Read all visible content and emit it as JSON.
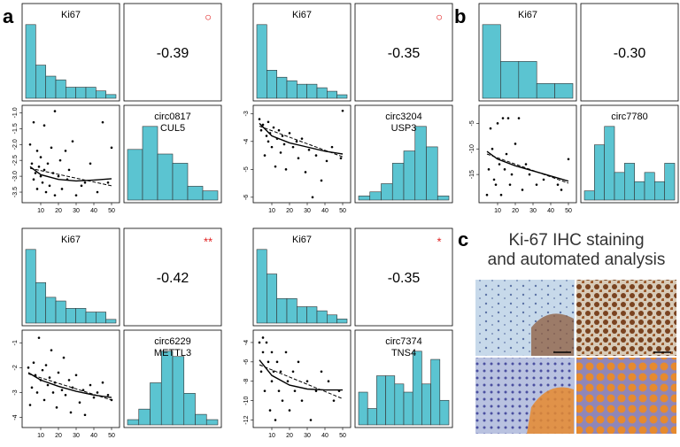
{
  "panel_labels": [
    "a",
    "b",
    "c"
  ],
  "c_title": [
    "Ki-67 IHC staining",
    "and automated analysis"
  ],
  "chart_data": [
    {
      "type": "pairs",
      "ki67_label": "Ki67",
      "ki67_hist": {
        "bins": [
          0,
          5,
          10,
          15,
          20,
          25,
          30,
          35,
          40,
          45
        ],
        "counts": [
          20,
          9,
          6,
          5,
          3,
          3,
          3,
          2,
          1
        ]
      },
      "r": -0.39,
      "marker": "○",
      "circ_label": [
        "circ0817",
        "CUL5"
      ],
      "circ_hist": {
        "bins": [
          -4.0,
          -3.5,
          -3.0,
          -2.5,
          -2.0,
          -1.5,
          -1.0
        ],
        "counts": [
          11,
          16,
          10,
          8,
          3,
          2
        ]
      },
      "scatter": {
        "xlim": [
          1,
          53
        ],
        "ylim": [
          -3.75,
          -0.85
        ],
        "xticks": [
          10,
          20,
          30,
          40,
          50
        ],
        "yticks": [
          {
            "value": -1,
            "label": "-1.0"
          },
          -1.5,
          {
            "value": -2,
            "label": "-2.0"
          },
          -2.5,
          {
            "value": -3,
            "label": "-3.0"
          },
          -3.5
        ],
        "x": [
          4,
          5,
          6,
          6,
          7,
          8,
          8,
          9,
          10,
          10,
          11,
          12,
          12,
          13,
          14,
          15,
          16,
          17,
          18,
          18,
          20,
          21,
          22,
          24,
          25,
          26,
          28,
          30,
          33,
          35,
          38,
          42,
          45,
          48,
          50
        ],
        "y": [
          -2.0,
          -2.6,
          -1.3,
          -3.1,
          -2.9,
          -2.2,
          -3.4,
          -2.7,
          -3.0,
          -2.4,
          -3.2,
          -2.8,
          -1.4,
          -3.5,
          -2.6,
          -3.3,
          -2.1,
          -2.9,
          -0.95,
          -3.6,
          -3.0,
          -2.5,
          -3.4,
          -2.2,
          -3.1,
          -2.8,
          -1.9,
          -3.6,
          -3.3,
          -3.2,
          -2.6,
          -3.5,
          -1.3,
          -3.2,
          -2.1
        ],
        "loess": {
          "x": [
            4,
            10,
            20,
            30,
            40,
            50
          ],
          "y": [
            -2.7,
            -2.95,
            -3.1,
            -3.15,
            -3.12,
            -3.08
          ]
        },
        "fit": {
          "x": [
            4,
            50
          ],
          "y": [
            -2.75,
            -3.3
          ]
        }
      }
    },
    {
      "type": "pairs",
      "ki67_label": "Ki67",
      "ki67_hist": {
        "bins": [
          0,
          5,
          10,
          15,
          20,
          25,
          30,
          35,
          40,
          45
        ],
        "counts": [
          21,
          8,
          6,
          5,
          4,
          4,
          3,
          2,
          1
        ]
      },
      "r": -0.35,
      "marker": "○",
      "circ_label": [
        "circ3204",
        "USP3"
      ],
      "circ_hist": {
        "bins": [
          -6.5,
          -6.0,
          -5.5,
          -5.0,
          -4.5,
          -4.0,
          -3.5,
          -3.0,
          -2.5
        ],
        "counts": [
          1,
          2,
          4,
          9,
          12,
          18,
          13,
          1
        ]
      },
      "scatter": {
        "xlim": [
          1,
          53
        ],
        "ylim": [
          -6.1,
          -2.8
        ],
        "xticks": [
          10,
          20,
          30,
          40,
          50
        ],
        "yticks": [
          -3,
          -4,
          -5,
          -6
        ],
        "x": [
          3,
          4,
          5,
          6,
          7,
          8,
          8,
          9,
          10,
          11,
          12,
          13,
          14,
          15,
          16,
          17,
          18,
          20,
          22,
          24,
          25,
          27,
          29,
          31,
          33,
          35,
          38,
          41,
          44,
          49,
          50
        ],
        "y": [
          -3.2,
          -3.6,
          -3.4,
          -4.5,
          -3.8,
          -3.3,
          -4.0,
          -3.7,
          -4.2,
          -3.5,
          -4.9,
          -3.9,
          -3.6,
          -4.4,
          -3.8,
          -4.1,
          -5.0,
          -3.7,
          -4.2,
          -4.0,
          -4.6,
          -3.9,
          -5.1,
          -4.3,
          -6.0,
          -4.5,
          -5.4,
          -4.7,
          -4.2,
          -4.6,
          -2.9
        ],
        "loess": {
          "x": [
            3,
            10,
            20,
            30,
            40,
            50
          ],
          "y": [
            -3.35,
            -3.8,
            -4.05,
            -4.2,
            -4.35,
            -4.45
          ]
        },
        "fit": {
          "x": [
            3,
            50
          ],
          "y": [
            -3.45,
            -4.55
          ]
        }
      }
    },
    {
      "type": "pairs",
      "ki67_label": "Ki67",
      "ki67_hist": {
        "bins": [
          0,
          10,
          20,
          30,
          40,
          50
        ],
        "counts": [
          10,
          5,
          5,
          2,
          2
        ]
      },
      "r": {
        "value": -0.3,
        "label": "-0.30"
      },
      "circ_label": [
        "circ7780"
      ],
      "circ_hist": {
        "bins": [
          -20,
          -18,
          -16,
          -14,
          -12,
          -10,
          -8,
          -6,
          -4,
          -2
        ],
        "counts": [
          1,
          6,
          8,
          3,
          4,
          2,
          3,
          2,
          4
        ]
      },
      "scatter": {
        "xlim": [
          1,
          53
        ],
        "ylim": [
          -20,
          -2
        ],
        "xticks": [
          10,
          20,
          30,
          40,
          50
        ],
        "yticks": [
          -5,
          -10,
          -15
        ],
        "x": [
          4,
          5,
          6,
          7,
          8,
          9,
          10,
          11,
          12,
          13,
          14,
          15,
          16,
          17,
          18,
          20,
          22,
          24,
          26,
          28,
          32,
          36,
          44,
          46,
          50
        ],
        "y": [
          -19,
          -14,
          -6,
          -10,
          -16,
          -17,
          -5,
          -13,
          -19,
          -4,
          -14,
          -11,
          -4,
          -17,
          -15,
          -9,
          -4,
          -18,
          -13,
          -15,
          -17,
          -16,
          -17,
          -18,
          -12
        ],
        "loess": {
          "x": [
            4,
            10,
            20,
            30,
            40,
            50
          ],
          "y": [
            -10.5,
            -12,
            -13.3,
            -14.3,
            -15.3,
            -16.3
          ]
        },
        "fit": {
          "x": [
            4,
            50
          ],
          "y": [
            -11,
            -16.7
          ]
        }
      }
    },
    {
      "type": "pairs",
      "ki67_label": "Ki67",
      "ki67_hist": {
        "bins": [
          0,
          5,
          10,
          15,
          20,
          25,
          30,
          35,
          40,
          45
        ],
        "counts": [
          20,
          11,
          7,
          6,
          4,
          4,
          3,
          3,
          1
        ]
      },
      "r": -0.42,
      "marker": "**",
      "circ_label": [
        "circ6229",
        "METTL3"
      ],
      "circ_hist": {
        "bins": [
          -4.5,
          -4.0,
          -3.5,
          -3.0,
          -2.5,
          -2.0,
          -1.5,
          -1.0,
          -0.5
        ],
        "counts": [
          1,
          3,
          8,
          14,
          13,
          6,
          2,
          1
        ]
      },
      "scatter": {
        "xlim": [
          1,
          53
        ],
        "ylim": [
          -4.3,
          -0.6
        ],
        "xticks": [
          10,
          20,
          30,
          40,
          50
        ],
        "yticks": [
          -1,
          -2,
          -3,
          -4
        ],
        "x": [
          3,
          4,
          5,
          6,
          7,
          8,
          9,
          10,
          11,
          12,
          13,
          14,
          15,
          16,
          17,
          18,
          19,
          20,
          22,
          23,
          24,
          26,
          27,
          28,
          30,
          32,
          34,
          35,
          38,
          40,
          42,
          45,
          48,
          50
        ],
        "y": [
          -2.0,
          -3.5,
          -2.8,
          -1.8,
          -2.3,
          -3.0,
          -0.8,
          -2.5,
          -2.1,
          -3.3,
          -1.9,
          -2.7,
          -2.4,
          -1.3,
          -3.0,
          -2.6,
          -3.6,
          -2.2,
          -2.9,
          -1.6,
          -3.1,
          -2.5,
          -3.8,
          -2.8,
          -2.3,
          -3.4,
          -2.9,
          -3.9,
          -2.7,
          -3.2,
          -3.0,
          -2.6,
          -3.1,
          -3.3
        ],
        "loess": {
          "x": [
            3,
            10,
            20,
            30,
            40,
            50
          ],
          "y": [
            -2.2,
            -2.5,
            -2.75,
            -2.95,
            -3.1,
            -3.2
          ]
        },
        "fit": {
          "x": [
            3,
            50
          ],
          "y": [
            -2.25,
            -3.3
          ]
        }
      }
    },
    {
      "type": "pairs",
      "ki67_label": "Ki67",
      "ki67_hist": {
        "bins": [
          0,
          5,
          10,
          15,
          20,
          25,
          30,
          35,
          40,
          45
        ],
        "counts": [
          18,
          12,
          6,
          6,
          4,
          4,
          3,
          2,
          1
        ]
      },
      "r": -0.35,
      "marker": "*",
      "circ_label": [
        "circ7374",
        "TNS4"
      ],
      "circ_hist": {
        "bins": [
          -13,
          -12,
          -11,
          -10,
          -9,
          -8,
          -7,
          -6,
          -5,
          -4,
          -3
        ],
        "counts": [
          4,
          2,
          6,
          6,
          5,
          4,
          9,
          5,
          8,
          3
        ]
      },
      "scatter": {
        "xlim": [
          1,
          53
        ],
        "ylim": [
          -12.5,
          -3
        ],
        "xticks": [
          10,
          20,
          30,
          40,
          50
        ],
        "yticks": [
          -4,
          -6,
          -8,
          -10,
          -12
        ],
        "x": [
          3,
          4,
          5,
          5,
          6,
          7,
          8,
          9,
          10,
          10,
          11,
          12,
          13,
          14,
          15,
          16,
          18,
          19,
          20,
          22,
          23,
          25,
          27,
          30,
          32,
          35,
          38,
          42,
          45,
          48
        ],
        "y": [
          -4,
          -7,
          -3.5,
          -5,
          -9,
          -4,
          -6,
          -11,
          -5,
          -8,
          -7,
          -12,
          -6,
          -9,
          -7,
          -10,
          -5,
          -8,
          -11,
          -7,
          -9,
          -6,
          -10,
          -8,
          -12,
          -9,
          -7,
          -8,
          -10,
          -9
        ],
        "loess": {
          "x": [
            3,
            10,
            20,
            30,
            40,
            50
          ],
          "y": [
            -5.8,
            -7.4,
            -8.4,
            -8.8,
            -8.9,
            -8.9
          ]
        },
        "fit": {
          "x": [
            3,
            50
          ],
          "y": [
            -6.3,
            -9.8
          ]
        }
      }
    }
  ]
}
